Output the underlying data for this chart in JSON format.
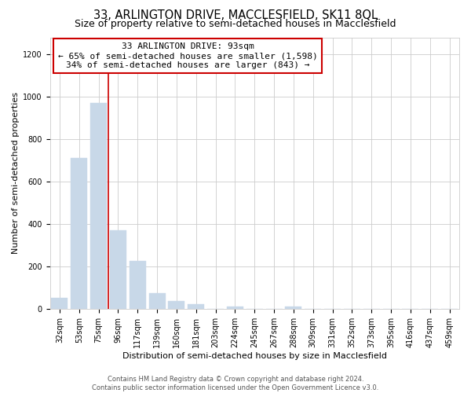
{
  "title": "33, ARLINGTON DRIVE, MACCLESFIELD, SK11 8QL",
  "subtitle": "Size of property relative to semi-detached houses in Macclesfield",
  "xlabel": "Distribution of semi-detached houses by size in Macclesfield",
  "ylabel": "Number of semi-detached properties",
  "bar_labels": [
    "32sqm",
    "53sqm",
    "75sqm",
    "96sqm",
    "117sqm",
    "139sqm",
    "160sqm",
    "181sqm",
    "203sqm",
    "224sqm",
    "245sqm",
    "267sqm",
    "288sqm",
    "309sqm",
    "331sqm",
    "352sqm",
    "373sqm",
    "395sqm",
    "416sqm",
    "437sqm",
    "459sqm"
  ],
  "bar_values": [
    50,
    710,
    970,
    370,
    225,
    75,
    35,
    20,
    0,
    10,
    0,
    0,
    10,
    0,
    0,
    0,
    0,
    0,
    0,
    0,
    0
  ],
  "bar_color": "#c8d8e8",
  "bar_edge_color": "#a0c0d8",
  "annotation_title": "33 ARLINGTON DRIVE: 93sqm",
  "annotation_line1": "← 65% of semi-detached houses are smaller (1,598)",
  "annotation_line2": "34% of semi-detached houses are larger (843) →",
  "annotation_box_color": "#ffffff",
  "annotation_box_edge": "#cc0000",
  "vertical_line_color": "#cc0000",
  "footer_line1": "Contains HM Land Registry data © Crown copyright and database right 2024.",
  "footer_line2": "Contains public sector information licensed under the Open Government Licence v3.0.",
  "ylim": [
    0,
    1280
  ],
  "yticks": [
    0,
    200,
    400,
    600,
    800,
    1000,
    1200
  ],
  "title_fontsize": 10.5,
  "subtitle_fontsize": 9,
  "axis_label_fontsize": 8,
  "tick_fontsize": 7,
  "annotation_fontsize": 8,
  "footer_fontsize": 6
}
